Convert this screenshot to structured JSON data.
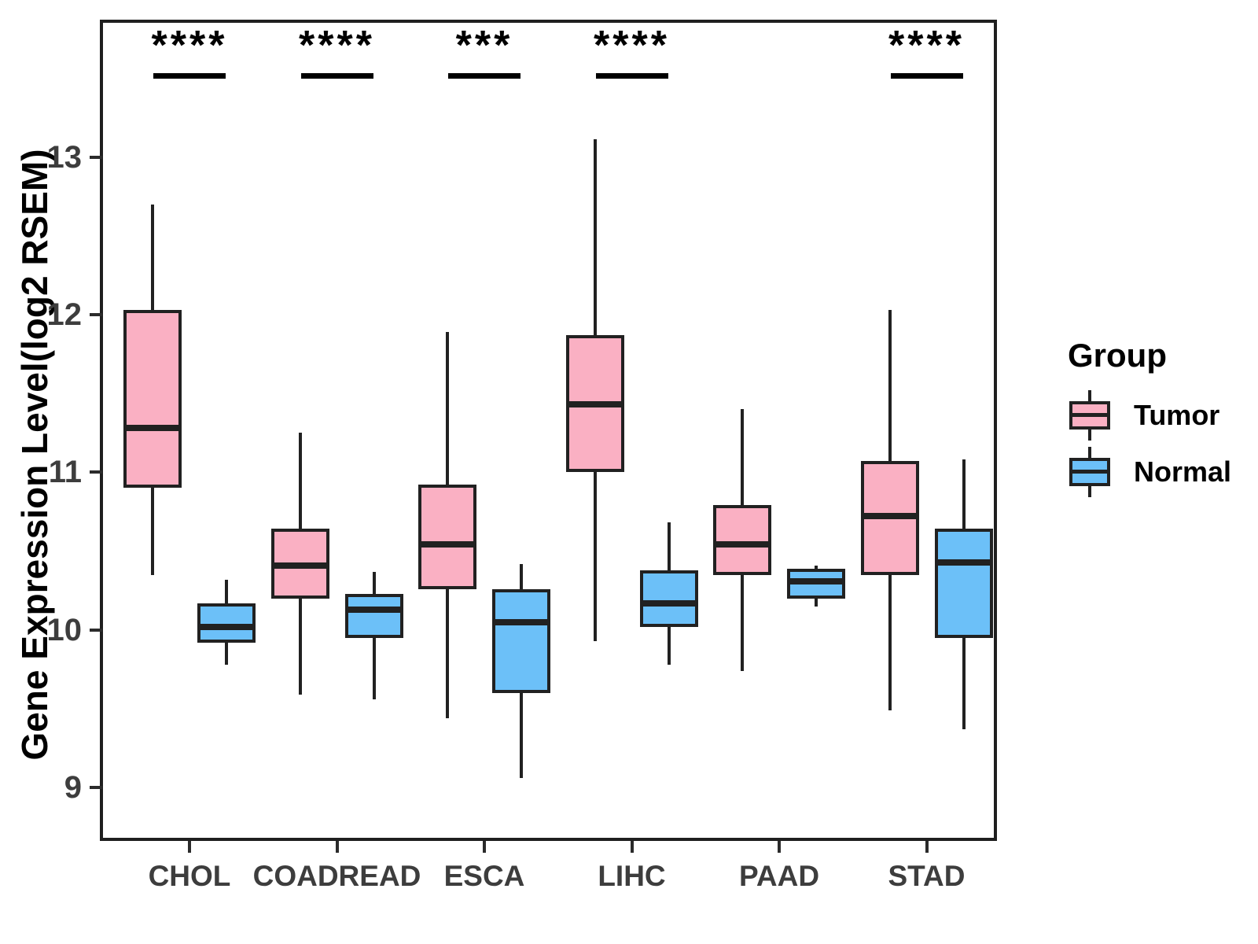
{
  "chart_data": {
    "type": "boxplot",
    "title": "",
    "ylabel": "Gene Expression Level(log2 RSEM)",
    "xlabel": "",
    "categories": [
      "CHOL",
      "COADREAD",
      "ESCA",
      "LIHC",
      "PAAD",
      "STAD"
    ],
    "yticks": [
      9,
      10,
      11,
      12,
      13
    ],
    "ylim": [
      8.65,
      13.85
    ],
    "grid": false,
    "legend_title": "Group",
    "legend_position": "right",
    "value_order": [
      "min",
      "q1",
      "median",
      "q3",
      "max"
    ],
    "series": [
      {
        "name": "Tumor",
        "color": "#FAB0C3",
        "boxes": [
          {
            "category": "CHOL",
            "values": [
              10.35,
              10.9,
              11.28,
              12.03,
              12.7
            ]
          },
          {
            "category": "COADREAD",
            "values": [
              9.59,
              10.2,
              10.41,
              10.64,
              11.25
            ]
          },
          {
            "category": "ESCA",
            "values": [
              9.44,
              10.26,
              10.54,
              10.92,
              11.89
            ]
          },
          {
            "category": "LIHC",
            "values": [
              9.93,
              11.0,
              11.43,
              11.87,
              13.11
            ]
          },
          {
            "category": "PAAD",
            "values": [
              9.74,
              10.35,
              10.54,
              10.79,
              11.4
            ]
          },
          {
            "category": "STAD",
            "values": [
              9.49,
              10.35,
              10.72,
              11.07,
              12.03
            ]
          }
        ]
      },
      {
        "name": "Normal",
        "color": "#6CC0F8",
        "boxes": [
          {
            "category": "CHOL",
            "values": [
              9.78,
              9.92,
              10.02,
              10.17,
              10.32
            ]
          },
          {
            "category": "COADREAD",
            "values": [
              9.56,
              9.95,
              10.13,
              10.23,
              10.37
            ]
          },
          {
            "category": "ESCA",
            "values": [
              9.06,
              9.6,
              10.05,
              10.26,
              10.42
            ]
          },
          {
            "category": "LIHC",
            "values": [
              9.78,
              10.02,
              10.17,
              10.38,
              10.68
            ]
          },
          {
            "category": "PAAD",
            "values": [
              10.15,
              10.2,
              10.31,
              10.39,
              10.41
            ]
          },
          {
            "category": "STAD",
            "values": [
              9.37,
              9.95,
              10.43,
              10.64,
              11.08
            ]
          }
        ]
      }
    ],
    "significance": [
      {
        "category": "CHOL",
        "label": "****"
      },
      {
        "category": "COADREAD",
        "label": "****"
      },
      {
        "category": "ESCA",
        "label": "***"
      },
      {
        "category": "LIHC",
        "label": "****"
      },
      {
        "category": "STAD",
        "label": "****"
      }
    ],
    "colors": {
      "tumor_fill": "#FAB0C3",
      "normal_fill": "#6CC0F8",
      "box_line": "#212121",
      "axis_text": "#3D3D3D",
      "significance": "#000000"
    }
  }
}
